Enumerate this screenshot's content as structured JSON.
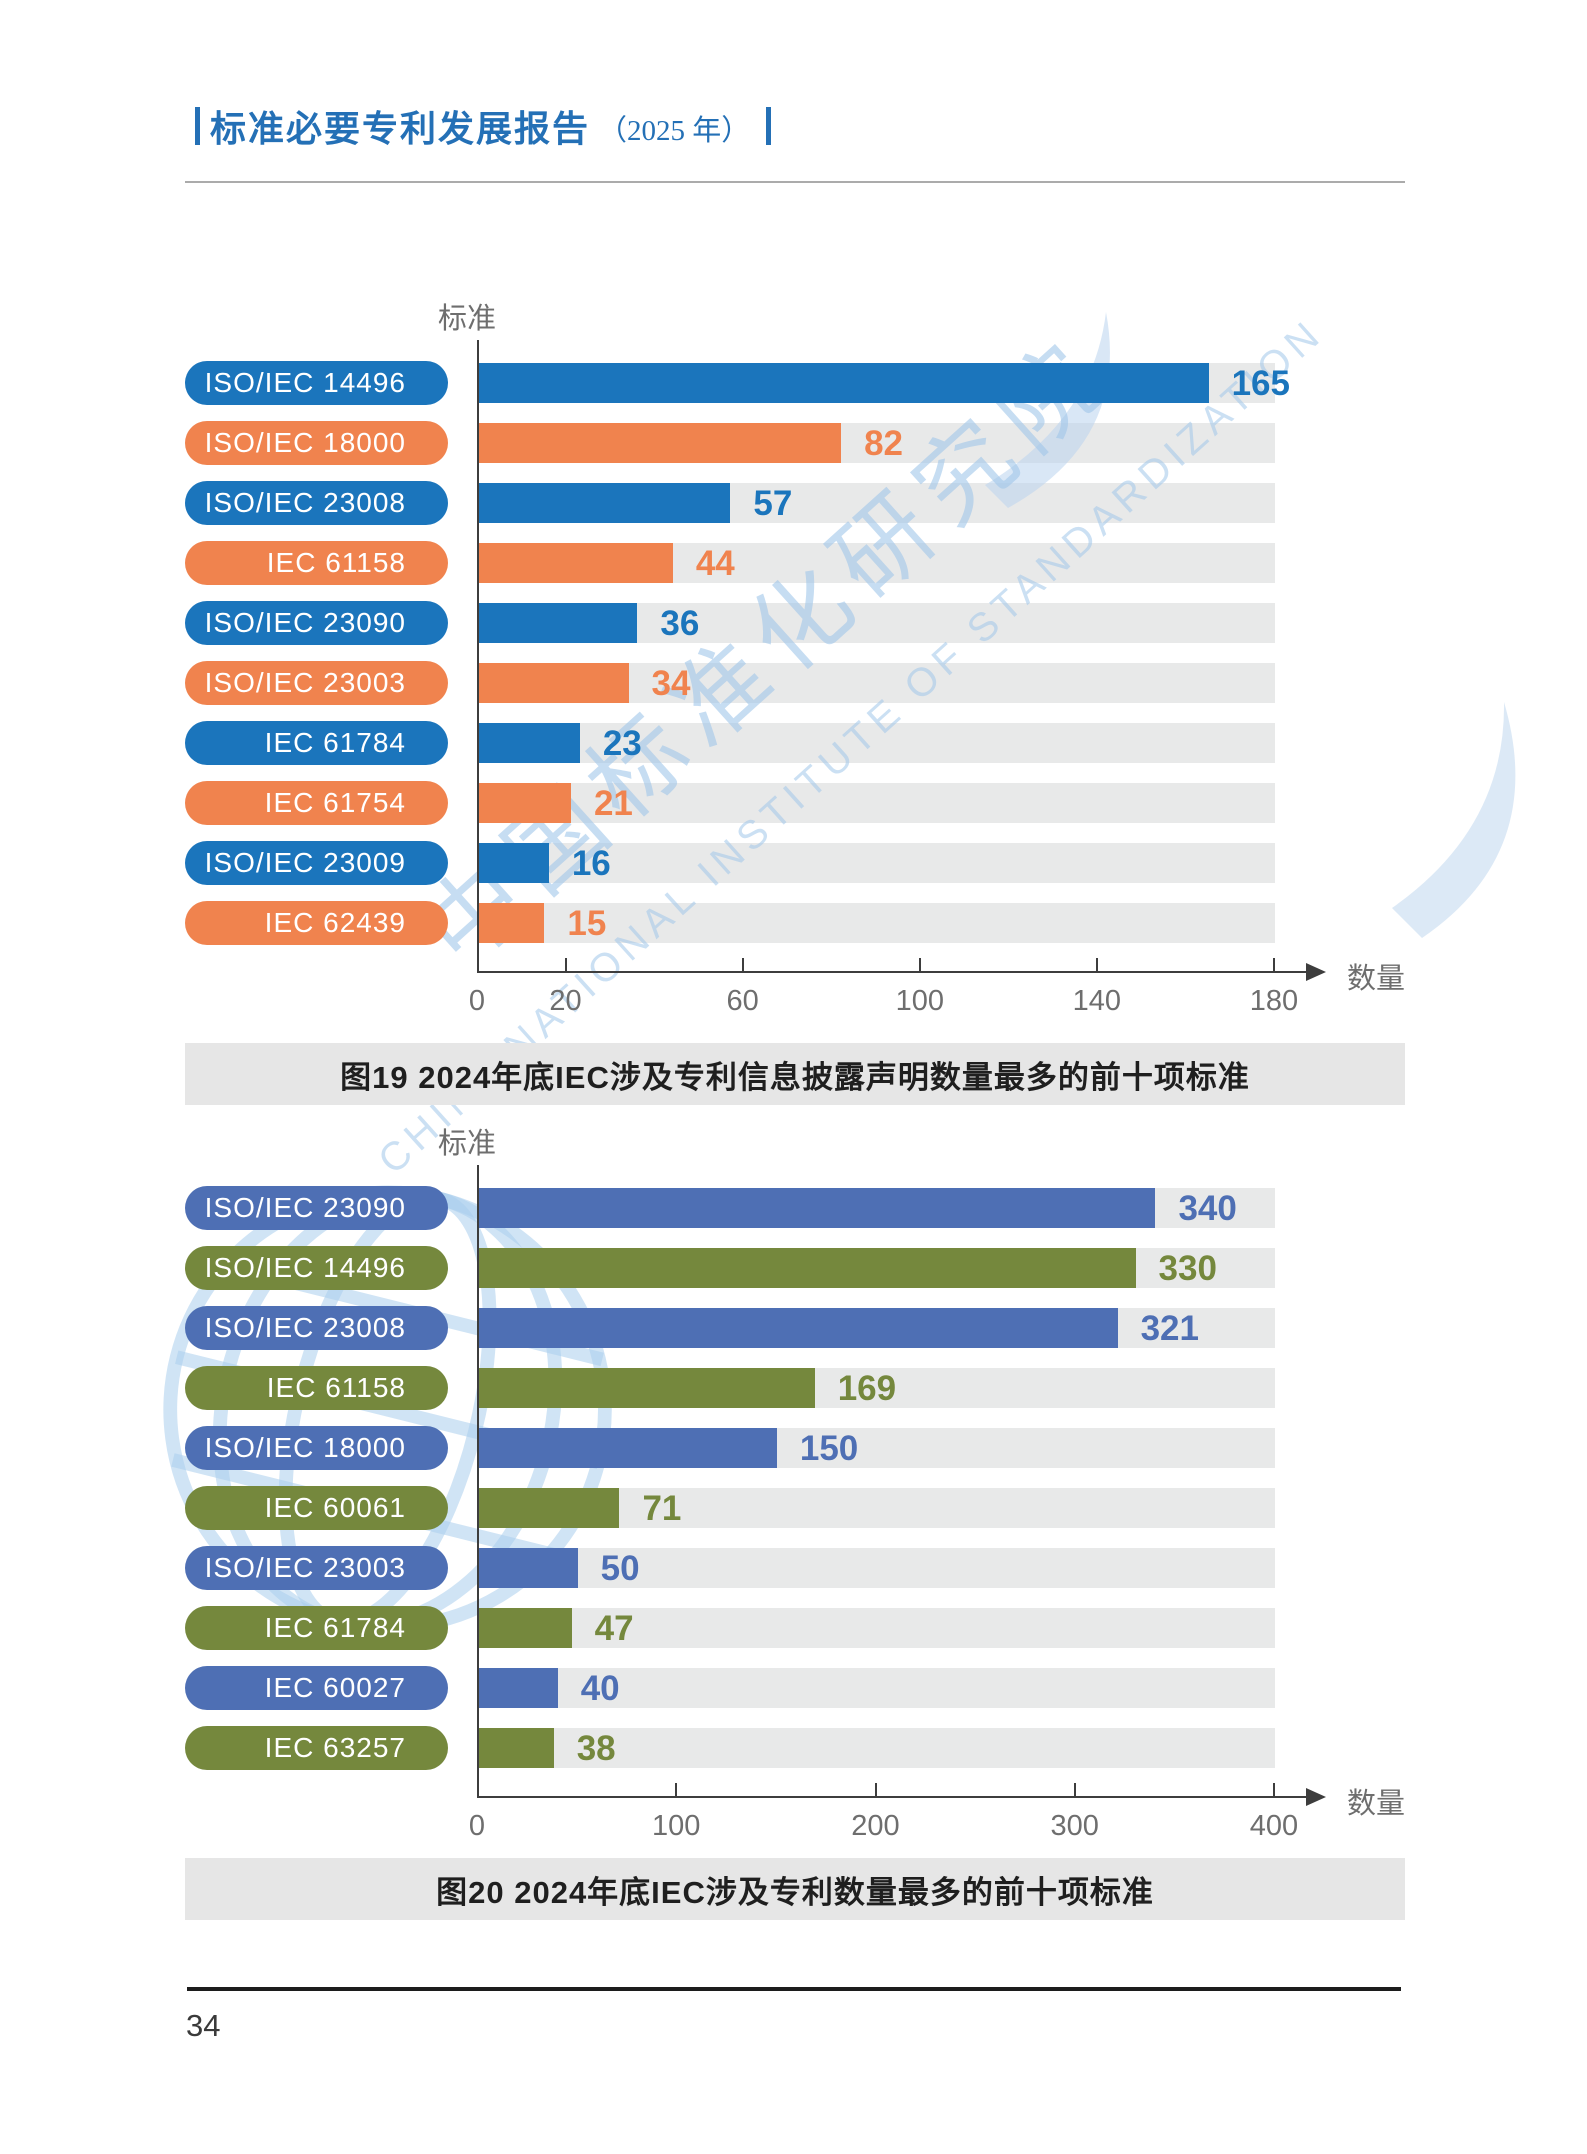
{
  "page": {
    "header": {
      "title": "标准必要专利发展报告",
      "year_suffix": "（2025 年）"
    },
    "page_number": "34",
    "watermark": {
      "cn": "中国标准化研究院",
      "en": "CHINA NATIONAL INSTITUTE OF STANDARDIZATION"
    }
  },
  "chart_data": [
    {
      "type": "bar",
      "orientation": "horizontal",
      "title": "图19  2024年底IEC涉及专利信息披露声明数量最多的前十项标准",
      "ylabel": "标准",
      "xlabel": "数量",
      "xlim": [
        0,
        180
      ],
      "xticks": [
        0,
        20,
        60,
        100,
        140,
        180
      ],
      "categories": [
        "ISO/IEC 14496",
        "ISO/IEC 18000",
        "ISO/IEC 23008",
        "IEC 61158",
        "ISO/IEC 23090",
        "ISO/IEC 23003",
        "IEC 61784",
        "IEC 61754",
        "ISO/IEC 23009",
        "IEC 62439"
      ],
      "values": [
        165,
        82,
        57,
        44,
        36,
        34,
        23,
        21,
        16,
        15
      ],
      "palette": [
        "#1B75BC",
        "#F0834E"
      ],
      "color_pattern": "alternate",
      "track_color": "#E8E9E9",
      "grid": false,
      "legend": false
    },
    {
      "type": "bar",
      "orientation": "horizontal",
      "title": "图20  2024年底IEC涉及专利数量最多的前十项标准",
      "ylabel": "标准",
      "xlabel": "数量",
      "xlim": [
        0,
        400
      ],
      "xticks": [
        0,
        100,
        200,
        300,
        400
      ],
      "categories": [
        "ISO/IEC 23090",
        "ISO/IEC 14496",
        "ISO/IEC 23008",
        "IEC 61158",
        "ISO/IEC 18000",
        "IEC 60061",
        "ISO/IEC 23003",
        "IEC 61784",
        "IEC 60027",
        "IEC 63257"
      ],
      "values": [
        340,
        330,
        321,
        169,
        150,
        71,
        50,
        47,
        40,
        38
      ],
      "palette": [
        "#4E6FB4",
        "#75883D"
      ],
      "color_pattern": "alternate",
      "track_color": "#E8E9E9",
      "grid": false,
      "legend": false
    }
  ]
}
